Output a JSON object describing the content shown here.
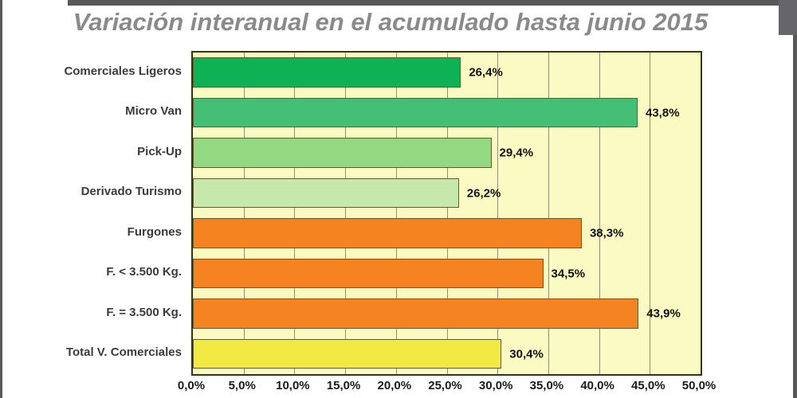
{
  "frame": {
    "edge_color": "#58585a",
    "corner_block_color": "#66666a"
  },
  "title": {
    "text": "Variación interanual en el acumulado hasta junio 2015",
    "color": "#8a8a8c"
  },
  "chart_data": {
    "type": "bar",
    "orientation": "horizontal",
    "title": "Variación interanual en el acumulado hasta junio 2015",
    "categories": [
      "Comerciales Ligeros",
      "Micro Van",
      "Pick-Up",
      "Derivado Turismo",
      "Furgones",
      "F. < 3.500 Kg.",
      "F. = 3.500 Kg.",
      "Total V. Comerciales"
    ],
    "values": [
      26.4,
      43.8,
      29.4,
      26.2,
      38.3,
      34.5,
      43.9,
      30.4
    ],
    "value_labels": [
      "26,4%",
      "43,8%",
      "29,4%",
      "26,2%",
      "38,3%",
      "34,5%",
      "43,9%",
      "30,4%"
    ],
    "bar_colors": [
      "#0fb155",
      "#45bf75",
      "#93d981",
      "#c5e9ad",
      "#f68322",
      "#f68322",
      "#f68322",
      "#f2ea43"
    ],
    "bar_border_color": "#5e5e2c",
    "xlim": [
      0,
      50
    ],
    "x_tick_values": [
      0,
      5,
      10,
      15,
      20,
      25,
      30,
      35,
      40,
      45,
      50
    ],
    "x_tick_labels": [
      "0,0%",
      "5,0%",
      "10,0%",
      "15,0%",
      "20,0%",
      "25,0%",
      "30,0%",
      "35,0%",
      "40,0%",
      "45,0%",
      "50,0%"
    ],
    "grid": true,
    "grid_color": "#90906e",
    "plot_bg": "#fbfac3",
    "plot_border_color": "#33331a",
    "category_label_color": "#3b3b3b",
    "tick_label_color": "#1a1a1a",
    "value_label_color": "#111111",
    "legend": "none"
  }
}
